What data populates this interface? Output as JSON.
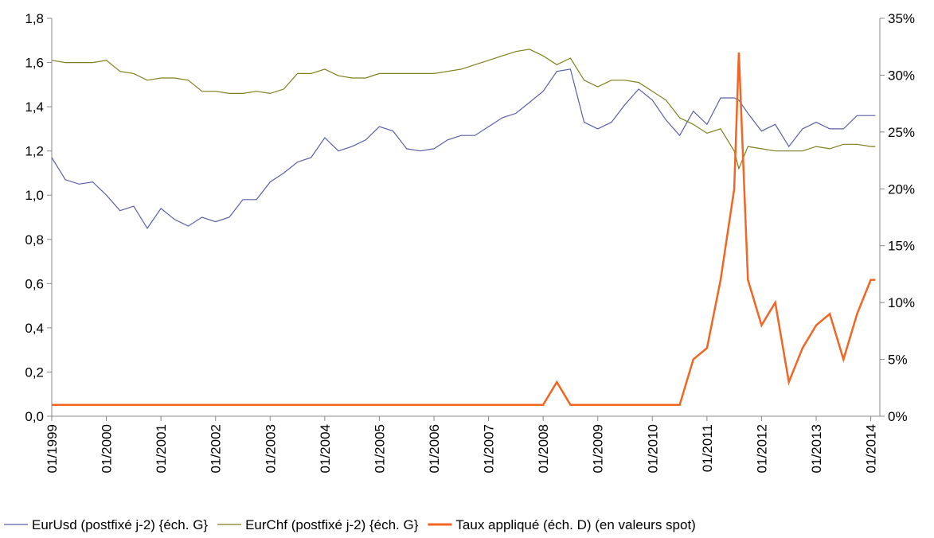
{
  "chart_data": {
    "type": "line",
    "x": [
      "01/1999",
      "04/1999",
      "07/1999",
      "10/1999",
      "01/2000",
      "04/2000",
      "07/2000",
      "10/2000",
      "01/2001",
      "04/2001",
      "07/2001",
      "10/2001",
      "01/2002",
      "04/2002",
      "07/2002",
      "10/2002",
      "01/2003",
      "04/2003",
      "07/2003",
      "10/2003",
      "01/2004",
      "04/2004",
      "07/2004",
      "10/2004",
      "01/2005",
      "04/2005",
      "07/2005",
      "10/2005",
      "01/2006",
      "04/2006",
      "07/2006",
      "10/2006",
      "01/2007",
      "04/2007",
      "07/2007",
      "10/2007",
      "01/2008",
      "04/2008",
      "07/2008",
      "10/2008",
      "01/2009",
      "04/2009",
      "07/2009",
      "10/2009",
      "01/2010",
      "04/2010",
      "07/2010",
      "10/2010",
      "01/2011",
      "04/2011",
      "07/2011",
      "08/2011",
      "10/2011",
      "01/2012",
      "04/2012",
      "07/2012",
      "10/2012",
      "01/2013",
      "04/2013",
      "07/2013",
      "10/2013",
      "01/2014",
      "02/2014"
    ],
    "series": [
      {
        "name": "EurUsd (postfixé j-2) {éch. G}",
        "color": "#5b5ea6",
        "values": [
          1.17,
          1.07,
          1.05,
          1.06,
          1.0,
          0.93,
          0.95,
          0.85,
          0.94,
          0.89,
          0.86,
          0.9,
          0.88,
          0.9,
          0.98,
          0.98,
          1.06,
          1.1,
          1.15,
          1.17,
          1.26,
          1.2,
          1.22,
          1.25,
          1.31,
          1.29,
          1.21,
          1.2,
          1.21,
          1.25,
          1.27,
          1.27,
          1.31,
          1.35,
          1.37,
          1.42,
          1.47,
          1.56,
          1.57,
          1.33,
          1.3,
          1.33,
          1.41,
          1.48,
          1.43,
          1.34,
          1.27,
          1.38,
          1.32,
          1.44,
          1.44,
          1.43,
          1.37,
          1.29,
          1.32,
          1.22,
          1.3,
          1.33,
          1.3,
          1.3,
          1.36,
          1.36,
          1.36
        ]
      },
      {
        "name": "EurChf (postfixé j-2) {éch. G}",
        "color": "#7f7f20",
        "values": [
          1.61,
          1.6,
          1.6,
          1.6,
          1.61,
          1.56,
          1.55,
          1.52,
          1.53,
          1.53,
          1.52,
          1.47,
          1.47,
          1.46,
          1.46,
          1.47,
          1.46,
          1.48,
          1.55,
          1.55,
          1.57,
          1.54,
          1.53,
          1.53,
          1.55,
          1.55,
          1.55,
          1.55,
          1.55,
          1.56,
          1.57,
          1.59,
          1.61,
          1.63,
          1.65,
          1.66,
          1.63,
          1.59,
          1.62,
          1.52,
          1.49,
          1.52,
          1.52,
          1.51,
          1.47,
          1.43,
          1.35,
          1.32,
          1.28,
          1.3,
          1.2,
          1.12,
          1.22,
          1.21,
          1.2,
          1.2,
          1.2,
          1.22,
          1.21,
          1.23,
          1.23,
          1.22,
          1.22
        ]
      },
      {
        "name": "Taux appliqué (éch. D) (en valeurs spot)",
        "color": "#f26522",
        "axis": "y2",
        "values": [
          1,
          1,
          1,
          1,
          1,
          1,
          1,
          1,
          1,
          1,
          1,
          1,
          1,
          1,
          1,
          1,
          1,
          1,
          1,
          1,
          1,
          1,
          1,
          1,
          1,
          1,
          1,
          1,
          1,
          1,
          1,
          1,
          1,
          1,
          1,
          1,
          1,
          3,
          1,
          1,
          1,
          1,
          1,
          1,
          1,
          1,
          1,
          5,
          6,
          12,
          20,
          32,
          12,
          8,
          10,
          3,
          6,
          8,
          9,
          5,
          9,
          12,
          12
        ]
      }
    ],
    "xlim": [
      "01/1999",
      "03/2014"
    ],
    "xticks": [
      "01/1999",
      "01/2000",
      "01/2001",
      "01/2002",
      "01/2003",
      "01/2004",
      "01/2005",
      "01/2006",
      "01/2007",
      "01/2008",
      "01/2009",
      "01/2010",
      "01/2011",
      "01/2012",
      "01/2013",
      "01/2014"
    ],
    "ylim": [
      0,
      1.8
    ],
    "yticks": [
      {
        "value": 0,
        "label": "0,0"
      },
      {
        "value": 0.2,
        "label": "0,2"
      },
      {
        "value": 0.4,
        "label": "0,4"
      },
      {
        "value": 0.6,
        "label": "0,6"
      },
      {
        "value": 0.8,
        "label": "0,8"
      },
      {
        "value": 1.0,
        "label": "1,0"
      },
      {
        "value": 1.2,
        "label": "1,2"
      },
      {
        "value": 1.4,
        "label": "1,4"
      },
      {
        "value": 1.6,
        "label": "1,6"
      },
      {
        "value": 1.8,
        "label": "1,8"
      }
    ],
    "y2lim": [
      0,
      35
    ],
    "y2ticks": [
      {
        "value": 0,
        "label": "0%"
      },
      {
        "value": 5,
        "label": "5%"
      },
      {
        "value": 10,
        "label": "10%"
      },
      {
        "value": 15,
        "label": "15%"
      },
      {
        "value": 20,
        "label": "20%"
      },
      {
        "value": 25,
        "label": "25%"
      },
      {
        "value": 30,
        "label": "30%"
      },
      {
        "value": 35,
        "label": "35%"
      }
    ],
    "legend": "bottom"
  }
}
